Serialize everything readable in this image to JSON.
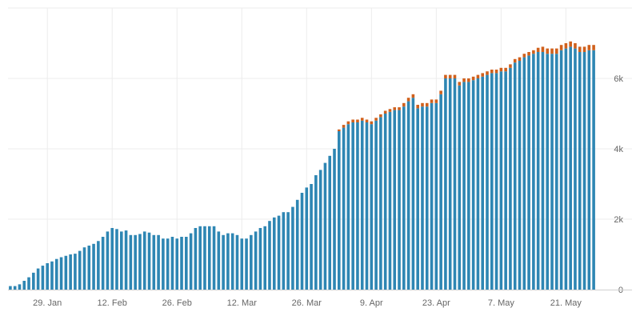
{
  "chart_data": {
    "type": "bar",
    "stacked": true,
    "x_tick_labels": [
      "29. Jan",
      "12. Feb",
      "26. Feb",
      "12. Mar",
      "26. Mar",
      "9. Apr",
      "23. Apr",
      "7. May",
      "21. May"
    ],
    "y_tick_labels": [
      "0",
      "2k",
      "4k",
      "6k"
    ],
    "y_ticks": [
      0,
      2000,
      4000,
      6000
    ],
    "ylim": [
      0,
      8000
    ],
    "grid": true,
    "legend": "none",
    "colors": {
      "primary": "#2e86b3",
      "secondary": "#d0601c"
    },
    "series": [
      {
        "values": [
          100,
          100,
          150,
          250,
          350,
          480,
          600,
          680,
          750,
          800,
          870,
          920,
          960,
          1000,
          1020,
          1100,
          1200,
          1250,
          1300,
          1380,
          1500,
          1650,
          1750,
          1720,
          1650,
          1680,
          1550,
          1550,
          1580,
          1650,
          1620,
          1550,
          1550,
          1450,
          1450,
          1500,
          1450,
          1500,
          1500,
          1600,
          1750,
          1800,
          1800,
          1800,
          1800,
          1650,
          1550,
          1600,
          1600,
          1550,
          1450,
          1450,
          1550,
          1650,
          1750,
          1800,
          1950,
          2050,
          2100,
          2200,
          2200,
          2350,
          2550,
          2750,
          2900,
          3000,
          3250,
          3400,
          3600,
          3800,
          4000,
          4500,
          4600,
          4700,
          4750,
          4750,
          4800,
          4750,
          4700,
          4800,
          4900,
          5000,
          5050,
          5100,
          5100,
          5200,
          5350,
          5450,
          5150,
          5200,
          5200,
          5300,
          5300,
          5550,
          6000,
          6000,
          6000,
          5800,
          5900,
          5900,
          5950,
          6000,
          6050,
          6100,
          6150,
          6150,
          6200,
          6200,
          6300,
          6450,
          6500,
          6600,
          6650,
          6700,
          6750,
          6750,
          6700,
          6700,
          6700,
          6800,
          6850,
          6900,
          6850,
          6750,
          6750,
          6800,
          6800
        ],
        "color": "#2e86b3"
      },
      {
        "values": [
          0,
          0,
          0,
          0,
          0,
          0,
          0,
          0,
          0,
          0,
          0,
          0,
          0,
          0,
          0,
          0,
          0,
          0,
          0,
          0,
          0,
          0,
          0,
          0,
          0,
          0,
          0,
          0,
          0,
          0,
          0,
          0,
          0,
          0,
          0,
          0,
          0,
          0,
          0,
          0,
          0,
          0,
          0,
          0,
          0,
          0,
          0,
          0,
          0,
          0,
          0,
          0,
          0,
          0,
          0,
          0,
          0,
          0,
          0,
          0,
          0,
          0,
          0,
          0,
          0,
          0,
          0,
          0,
          0,
          0,
          0,
          50,
          80,
          80,
          80,
          80,
          80,
          80,
          80,
          80,
          80,
          80,
          80,
          80,
          80,
          100,
          100,
          100,
          100,
          100,
          100,
          100,
          100,
          100,
          100,
          100,
          100,
          100,
          100,
          100,
          100,
          100,
          100,
          100,
          100,
          100,
          100,
          100,
          100,
          100,
          100,
          100,
          100,
          100,
          120,
          150,
          150,
          150,
          150,
          150,
          150,
          150,
          150,
          150,
          150,
          150,
          150
        ],
        "color": "#d0601c"
      }
    ]
  }
}
